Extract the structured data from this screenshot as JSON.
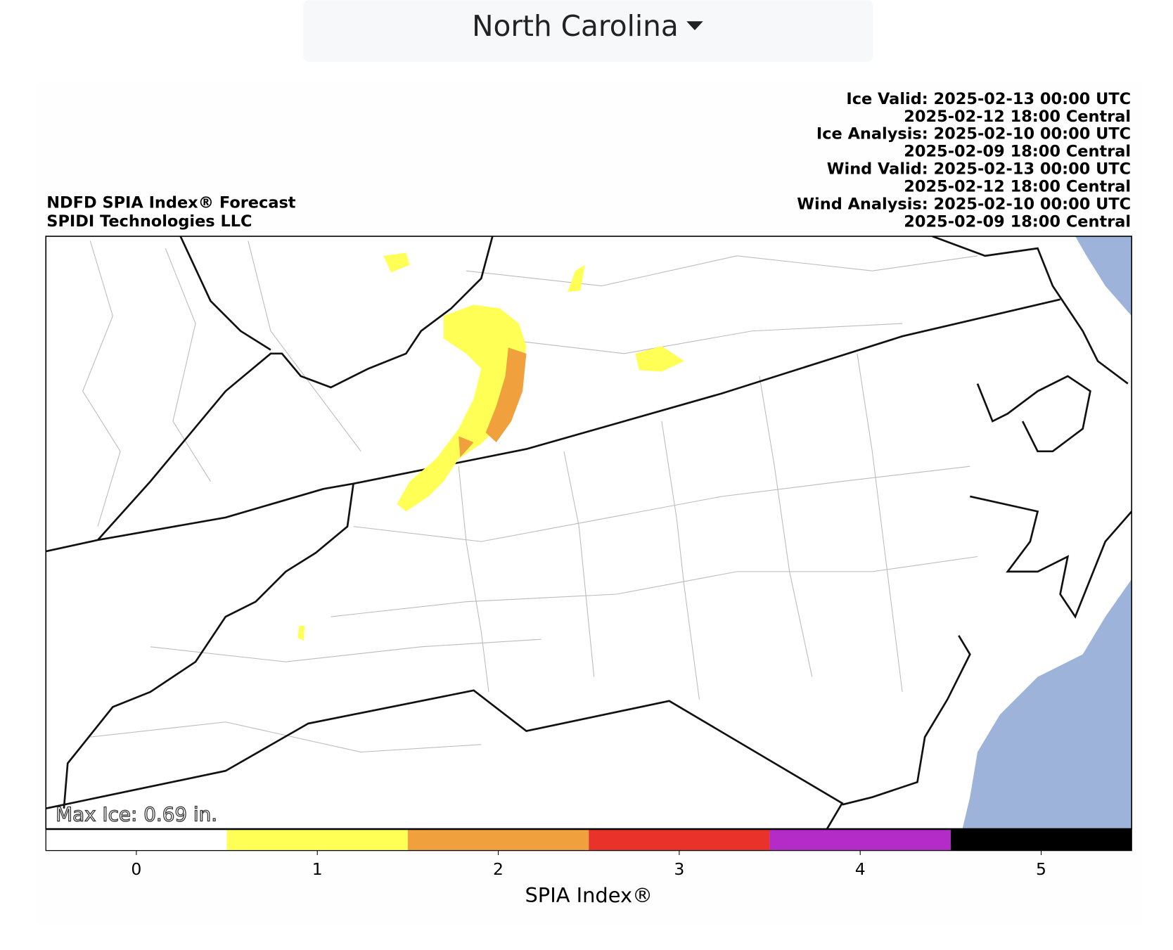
{
  "dropdown": {
    "label": "North Carolina"
  },
  "map": {
    "title_lines": [
      "NDFD SPIA Index® Forecast",
      "SPIDI Technologies LLC"
    ],
    "time_lines": [
      "Ice Valid: 2025-02-13 00:00 UTC",
      "2025-02-12 18:00 Central",
      "Ice Analysis: 2025-02-10 00:00 UTC",
      "2025-02-09 18:00 Central",
      "Wind Valid: 2025-02-13 00:00 UTC",
      "2025-02-12 18:00 Central",
      "Wind Analysis: 2025-02-10 00:00 UTC",
      "2025-02-09 18:00 Central"
    ],
    "max_ice": "Max Ice: 0.69 in."
  },
  "colorbar": {
    "label": "SPIA Index®",
    "lim": [
      -0.5,
      5.5
    ],
    "ticks": [
      0,
      1,
      2,
      3,
      4,
      5
    ],
    "colors": [
      "#ffffff",
      "#ffff55",
      "#f0a03c",
      "#e8322a",
      "#b42cc8",
      "#000000"
    ]
  }
}
